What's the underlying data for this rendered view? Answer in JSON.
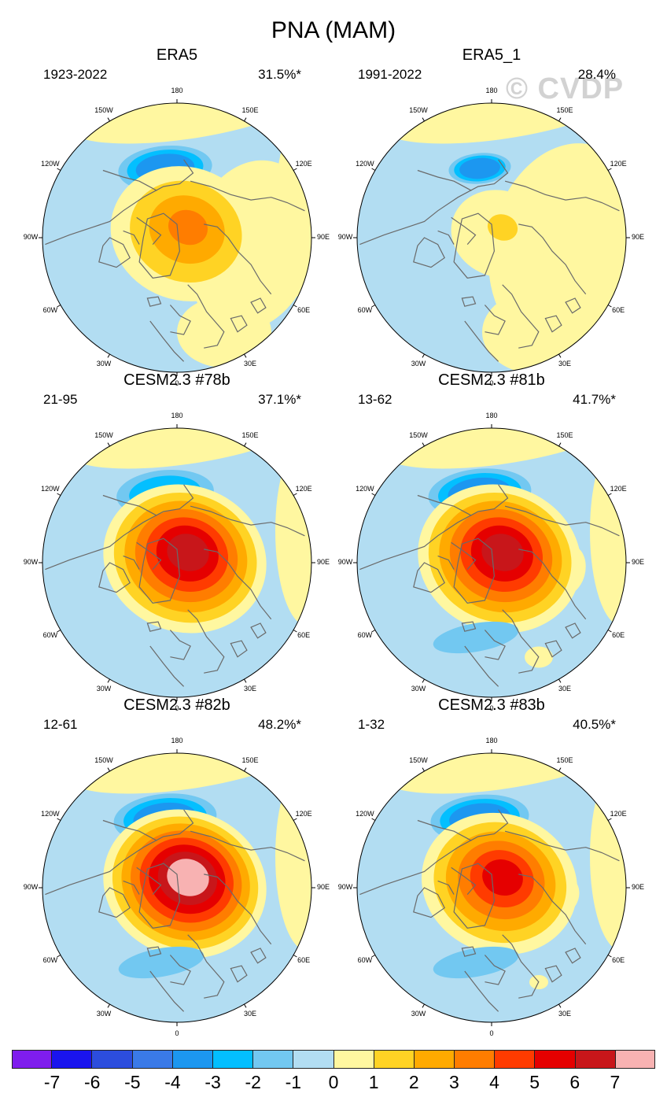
{
  "title": "PNA (MAM)",
  "watermark": "© CVDP",
  "longitude_labels": [
    "180",
    "150E",
    "120E",
    "90E",
    "60E",
    "30E",
    "0",
    "30W",
    "60W",
    "90W",
    "120W",
    "150W"
  ],
  "colors": {
    "land_outline": "#6a6a6a",
    "map_border": "#000000"
  },
  "chart_data": [
    {
      "type": "heatmap",
      "projection": "north-polar-stereographic",
      "title": "ERA5",
      "period": "1923-2022",
      "pct_variance": "31.5%*",
      "negative_center_min": -4,
      "positive_center_max": 3,
      "pattern_strength": 0.9,
      "ne_positive_extent": 1.0
    },
    {
      "type": "heatmap",
      "projection": "north-polar-stereographic",
      "title": "ERA5_1",
      "period": "1991-2022",
      "pct_variance": "28.4%",
      "negative_center_min": -4,
      "positive_center_max": 1,
      "pattern_strength": 0.55,
      "ne_positive_extent": 1.2
    },
    {
      "type": "heatmap",
      "projection": "north-polar-stereographic",
      "title": "CESM2.3 #78b",
      "period": "21-95",
      "pct_variance": "37.1%*",
      "negative_center_min": -3,
      "positive_center_max": 6,
      "pattern_strength": 1.0,
      "ne_positive_extent": 0.0
    },
    {
      "type": "heatmap",
      "projection": "north-polar-stereographic",
      "title": "CESM2.3 #81b",
      "period": "13-62",
      "pct_variance": "41.7%*",
      "negative_center_min": -4,
      "positive_center_max": 6,
      "pattern_strength": 1.0,
      "ne_positive_extent": 0.3
    },
    {
      "type": "heatmap",
      "projection": "north-polar-stereographic",
      "title": "CESM2.3 #82b",
      "period": "12-61",
      "pct_variance": "48.2%*",
      "negative_center_min": -4,
      "positive_center_max": 7,
      "pattern_strength": 1.0,
      "ne_positive_extent": 0.0
    },
    {
      "type": "heatmap",
      "projection": "north-polar-stereographic",
      "title": "CESM2.3 #83b",
      "period": "1-32",
      "pct_variance": "40.5%*",
      "negative_center_min": -4,
      "positive_center_max": 5,
      "pattern_strength": 0.95,
      "ne_positive_extent": 0.2
    }
  ],
  "colorbar": {
    "labels": [
      "-7",
      "-6",
      "-5",
      "-4",
      "-3",
      "-2",
      "-1",
      "0",
      "1",
      "2",
      "3",
      "4",
      "5",
      "6",
      "7"
    ],
    "colors": [
      "#7f1ded",
      "#1a14ee",
      "#2c4ddd",
      "#3a7ae8",
      "#1c97f0",
      "#03bfff",
      "#72c8f1",
      "#b2ddf2",
      "#fff7a0",
      "#ffd324",
      "#ffaa00",
      "#ff7d00",
      "#ff3b00",
      "#e50000",
      "#c8161a",
      "#f8b2b2"
    ]
  }
}
